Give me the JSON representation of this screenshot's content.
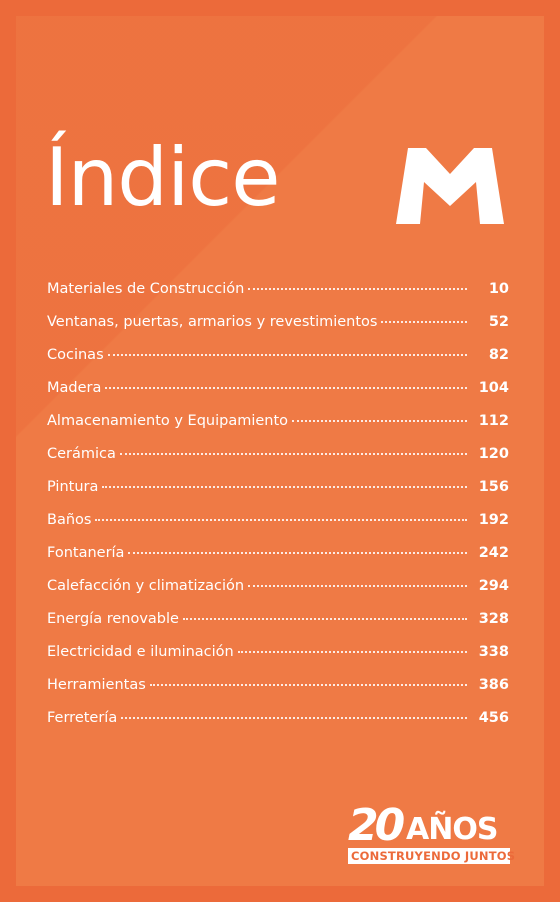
{
  "title": "Índice",
  "colors": {
    "background": "#ec6a3a",
    "panel": "#ef7a45",
    "text": "#ffffff"
  },
  "logo": {
    "icon": "envelope-m-logo-icon"
  },
  "toc": [
    {
      "label": "Materiales de Construcción",
      "page": "10"
    },
    {
      "label": "Ventanas, puertas, armarios y revestimientos",
      "page": "52"
    },
    {
      "label": "Cocinas",
      "page": "82"
    },
    {
      "label": "Madera",
      "page": "104"
    },
    {
      "label": "Almacenamiento y Equipamiento",
      "page": "112"
    },
    {
      "label": "Cerámica",
      "page": "120"
    },
    {
      "label": "Pintura",
      "page": "156"
    },
    {
      "label": "Baños",
      "page": "192"
    },
    {
      "label": "Fontanería",
      "page": "242"
    },
    {
      "label": "Calefacción y climatización",
      "page": "294"
    },
    {
      "label": "Energía renovable",
      "page": "328"
    },
    {
      "label": "Electricidad e iluminación",
      "page": "338"
    },
    {
      "label": "Herramientas",
      "page": "386"
    },
    {
      "label": "Ferretería",
      "page": "456"
    }
  ],
  "badge": {
    "number": "20",
    "word": "AÑOS",
    "subtitle": "CONSTRUYENDO JUNTOS"
  }
}
